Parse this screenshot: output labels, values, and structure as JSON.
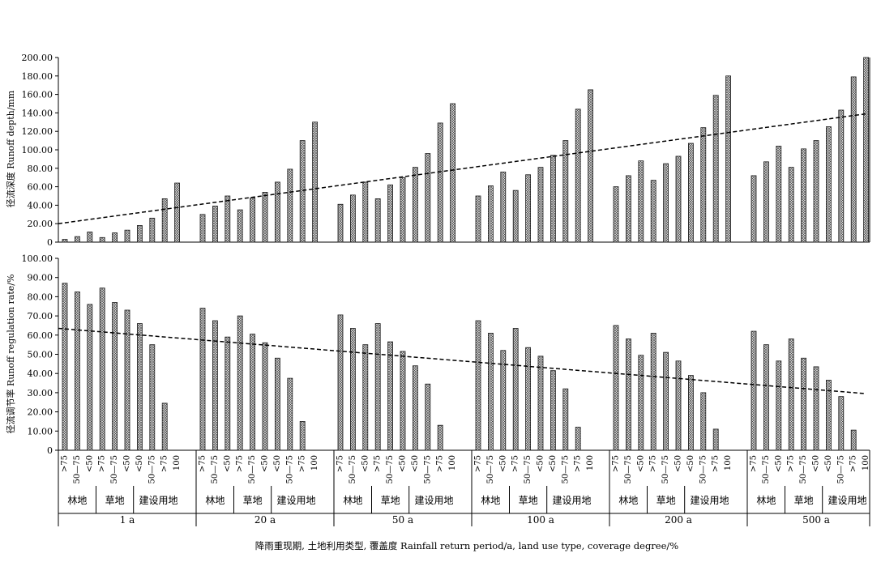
{
  "chart_data": [
    {
      "type": "bar",
      "ylabel": "径流深度 Runoff depth/mm",
      "ylim": [
        0,
        200
      ],
      "yticks": [
        "0",
        "20.00",
        "40.00",
        "60.00",
        "80.00",
        "100.00",
        "120.00",
        "140.00",
        "160.00",
        "180.00",
        "200.00"
      ],
      "values": [
        3,
        6,
        11,
        5,
        10,
        13,
        18,
        26,
        47,
        64,
        30,
        39,
        50,
        35,
        48,
        54,
        65,
        79,
        110,
        130,
        41,
        51,
        65,
        47,
        62,
        70,
        81,
        96,
        129,
        150,
        50,
        61,
        76,
        56,
        73,
        81,
        94,
        110,
        144,
        165,
        60,
        72,
        88,
        67,
        85,
        93,
        107,
        124,
        159,
        180,
        72,
        87,
        104,
        81,
        101,
        110,
        125,
        143,
        179,
        200
      ],
      "trendline": [
        20,
        139
      ],
      "pattern": "crosshatch"
    },
    {
      "type": "bar",
      "ylabel": "径流调节率 Runoff regulation rate/%",
      "ylim": [
        0,
        100
      ],
      "yticks": [
        "0",
        "10.00",
        "20.00",
        "30.00",
        "40.00",
        "50.00",
        "60.00",
        "70.00",
        "80.00",
        "90.00",
        "100.00"
      ],
      "values": [
        87,
        82.5,
        76,
        84.5,
        77,
        73,
        66,
        55,
        24.5,
        0,
        74,
        67.5,
        59,
        70,
        60.5,
        56,
        48,
        37.5,
        15,
        0,
        70.5,
        63.5,
        55,
        66,
        56.5,
        51.5,
        44,
        34.5,
        13,
        0,
        67.5,
        61,
        52,
        63.5,
        53.5,
        49,
        41.5,
        32,
        12,
        0,
        65,
        58,
        49.5,
        61,
        51,
        46.5,
        39,
        30,
        11,
        0,
        62,
        55,
        46.5,
        58,
        48,
        43.5,
        36.5,
        28,
        10.5,
        0
      ],
      "trendline": [
        63.5,
        29.5
      ],
      "pattern": "crosshatch"
    }
  ],
  "axis": {
    "coverage_labels": [
      ">75",
      "50—75",
      "<50",
      ">75",
      "50—75",
      "<50",
      "<50",
      "50—75",
      ">75",
      "100"
    ],
    "land_use_labels": [
      "林地",
      "草地",
      "建设用地"
    ],
    "periods": [
      "1 a",
      "20 a",
      "50 a",
      "100 a",
      "200 a",
      "500 a"
    ],
    "xlabel": "降雨重现期, 土地利用类型, 覆盖度 Rainfall return period/a, land use type, coverage degree/%"
  },
  "colors": {
    "bar_fill": "#bdbdbd",
    "hatch": "#555555",
    "axis": "#000000"
  }
}
